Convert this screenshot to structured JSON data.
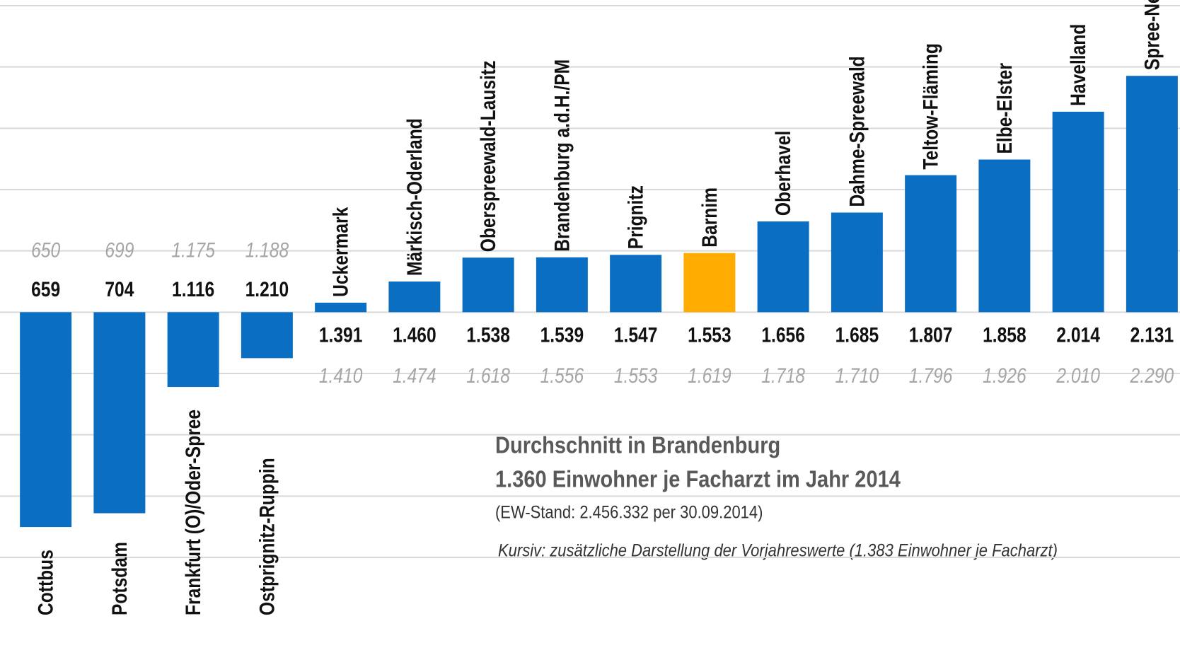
{
  "chart_data": {
    "type": "bar",
    "categories": [
      "Cottbus",
      "Potsdam",
      "Frankfurt (O)/Oder-Spree",
      "Ostprignitz-Ruppin",
      "Uckermark",
      "Märkisch-Oderland",
      "Oberspreewald-Lausitz",
      "Brandenburg a.d.H./PM",
      "Prignitz",
      "Barnim",
      "Oberhavel",
      "Dahme-Spreewald",
      "Teltow-Fläming",
      "Elbe-Elster",
      "Havelland",
      "Spree-Neiße"
    ],
    "series": [
      {
        "values": [
          659,
          704,
          1116,
          1210,
          1391,
          1460,
          1538,
          1539,
          1547,
          1553,
          1656,
          1685,
          1807,
          1858,
          2014,
          2131
        ],
        "value_labels": [
          "659",
          "704",
          "1.116",
          "1.210",
          "1.391",
          "1.460",
          "1.538",
          "1.539",
          "1.547",
          "1.553",
          "1.656",
          "1.685",
          "1.807",
          "1.858",
          "2.014",
          "2.131"
        ],
        "colors": [
          "#0a6fc2",
          "#0a6fc2",
          "#0a6fc2",
          "#0a6fc2",
          "#0a6fc2",
          "#0a6fc2",
          "#0a6fc2",
          "#0a6fc2",
          "#0a6fc2",
          "#ffab00",
          "#0a6fc2",
          "#0a6fc2",
          "#0a6fc2",
          "#0a6fc2",
          "#0a6fc2",
          "#0a6fc2"
        ]
      },
      {
        "values": [
          650,
          699,
          1175,
          1188,
          1410,
          1474,
          1618,
          1556,
          1553,
          1619,
          1718,
          1710,
          1796,
          1926,
          2010,
          2290
        ],
        "value_labels": [
          "650",
          "699",
          "1.175",
          "1.188",
          "1.410",
          "1.474",
          "1.618",
          "1.556",
          "1.553",
          "1.619",
          "1.718",
          "1.710",
          "1.796",
          "1.926",
          "2.010",
          "2.290"
        ]
      }
    ],
    "baseline": 1360,
    "ylim": [
      560,
      2360
    ],
    "yticks": [
      560,
      760,
      960,
      1160,
      1360,
      1560,
      1760,
      1960,
      2160,
      2360
    ],
    "grid": true,
    "annotations": [
      "Durchschnitt in Brandenburg",
      "1.360 Einwohner je Facharzt im Jahr 2014",
      "(EW-Stand: 2.456.332 per 30.09.2014)",
      "Kursiv: zusätzliche Darstellung der Vorjahreswerte (1.383 Einwohner je Facharzt)"
    ]
  }
}
